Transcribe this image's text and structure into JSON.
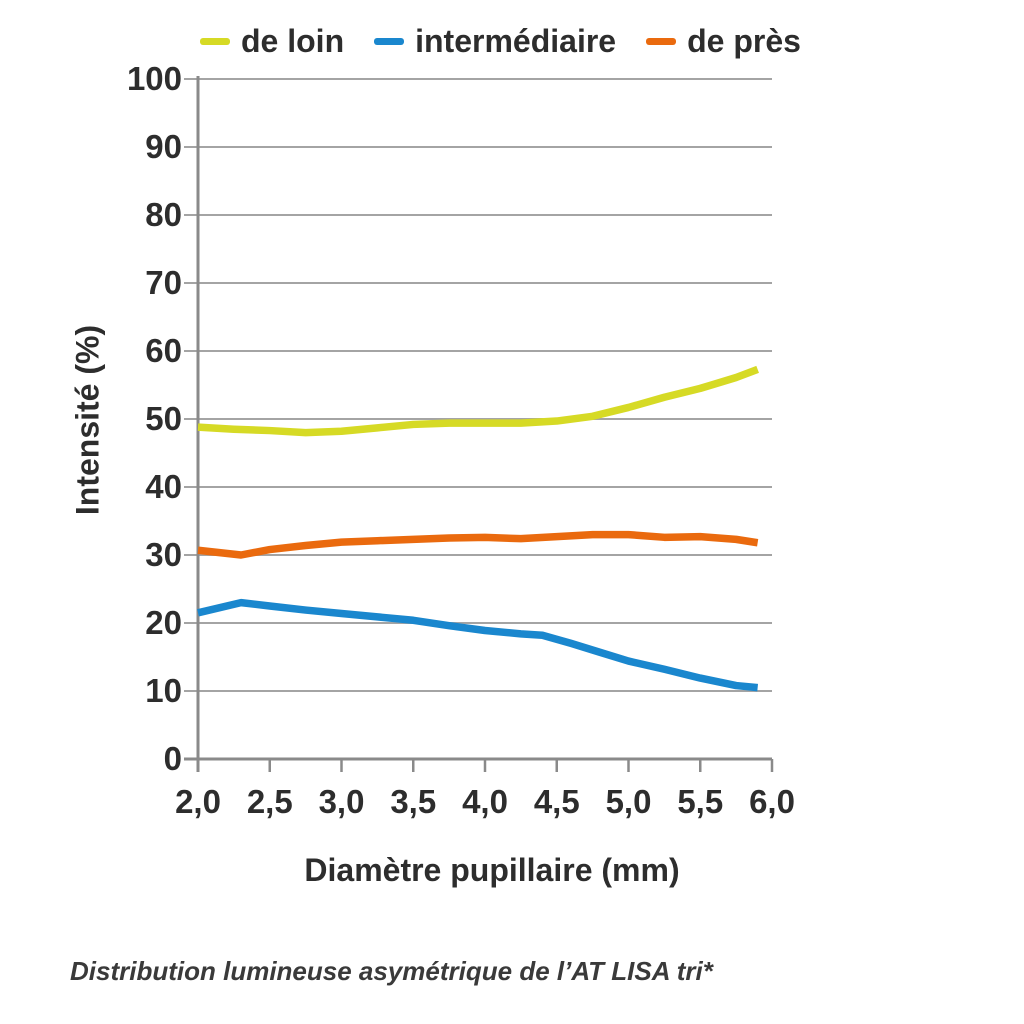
{
  "legend": {
    "items": [
      {
        "label": "de loin",
        "color": "#d6da25"
      },
      {
        "label": "intermédiaire",
        "color": "#1a87ce"
      },
      {
        "label": "de près",
        "color": "#ea6a0e"
      }
    ]
  },
  "chart_data": {
    "type": "line",
    "title": "",
    "xlabel": "Diamètre pupillaire (mm)",
    "ylabel": "Intensité (%)",
    "xlim": [
      2,
      6
    ],
    "ylim": [
      0,
      100
    ],
    "xticks": [
      "2,0",
      "2,5",
      "3,0",
      "3,5",
      "4,0",
      "4,5",
      "5,0",
      "5,5",
      "6,0"
    ],
    "yticks": [
      "0",
      "10",
      "20",
      "30",
      "40",
      "50",
      "60",
      "70",
      "80",
      "90",
      "100"
    ],
    "grid": true,
    "legend_position": "top",
    "series": [
      {
        "name": "de loin",
        "color": "#d6da25",
        "points": [
          [
            2,
            48.8
          ],
          [
            2.25,
            48.5
          ],
          [
            2.5,
            48.3
          ],
          [
            2.75,
            48.0
          ],
          [
            3,
            48.2
          ],
          [
            3.25,
            48.7
          ],
          [
            3.5,
            49.2
          ],
          [
            3.75,
            49.4
          ],
          [
            4,
            49.4
          ],
          [
            4.25,
            49.4
          ],
          [
            4.5,
            49.7
          ],
          [
            4.75,
            50.4
          ],
          [
            5,
            51.7
          ],
          [
            5.25,
            53.2
          ],
          [
            5.5,
            54.5
          ],
          [
            5.75,
            56.1
          ],
          [
            5.9,
            57.3
          ]
        ]
      },
      {
        "name": "intermédiaire",
        "color": "#1a87ce",
        "points": [
          [
            2,
            21.5
          ],
          [
            2.3,
            23.0
          ],
          [
            2.5,
            22.5
          ],
          [
            2.75,
            21.9
          ],
          [
            3,
            21.4
          ],
          [
            3.25,
            20.9
          ],
          [
            3.5,
            20.4
          ],
          [
            3.75,
            19.6
          ],
          [
            4,
            18.9
          ],
          [
            4.25,
            18.4
          ],
          [
            4.4,
            18.2
          ],
          [
            4.6,
            17.0
          ],
          [
            4.8,
            15.7
          ],
          [
            5,
            14.4
          ],
          [
            5.25,
            13.2
          ],
          [
            5.5,
            11.9
          ],
          [
            5.75,
            10.8
          ],
          [
            5.9,
            10.5
          ]
        ]
      },
      {
        "name": "de près",
        "color": "#ea6a0e",
        "points": [
          [
            2,
            30.7
          ],
          [
            2.3,
            30.0
          ],
          [
            2.5,
            30.8
          ],
          [
            2.75,
            31.4
          ],
          [
            3,
            31.9
          ],
          [
            3.25,
            32.1
          ],
          [
            3.5,
            32.3
          ],
          [
            3.75,
            32.5
          ],
          [
            4,
            32.6
          ],
          [
            4.25,
            32.4
          ],
          [
            4.5,
            32.7
          ],
          [
            4.75,
            33.0
          ],
          [
            5,
            33.0
          ],
          [
            5.25,
            32.6
          ],
          [
            5.5,
            32.7
          ],
          [
            5.75,
            32.3
          ],
          [
            5.9,
            31.8
          ]
        ]
      }
    ]
  },
  "caption": {
    "text": "Distribution lumineuse asymétrique de l’AT LISA tri*"
  },
  "colors": {
    "grid": "#a4a4a4",
    "axis": "#8a8a8a",
    "text": "#2d2d2d",
    "caption_text": "#3a3a3a",
    "background": "#ffffff"
  }
}
